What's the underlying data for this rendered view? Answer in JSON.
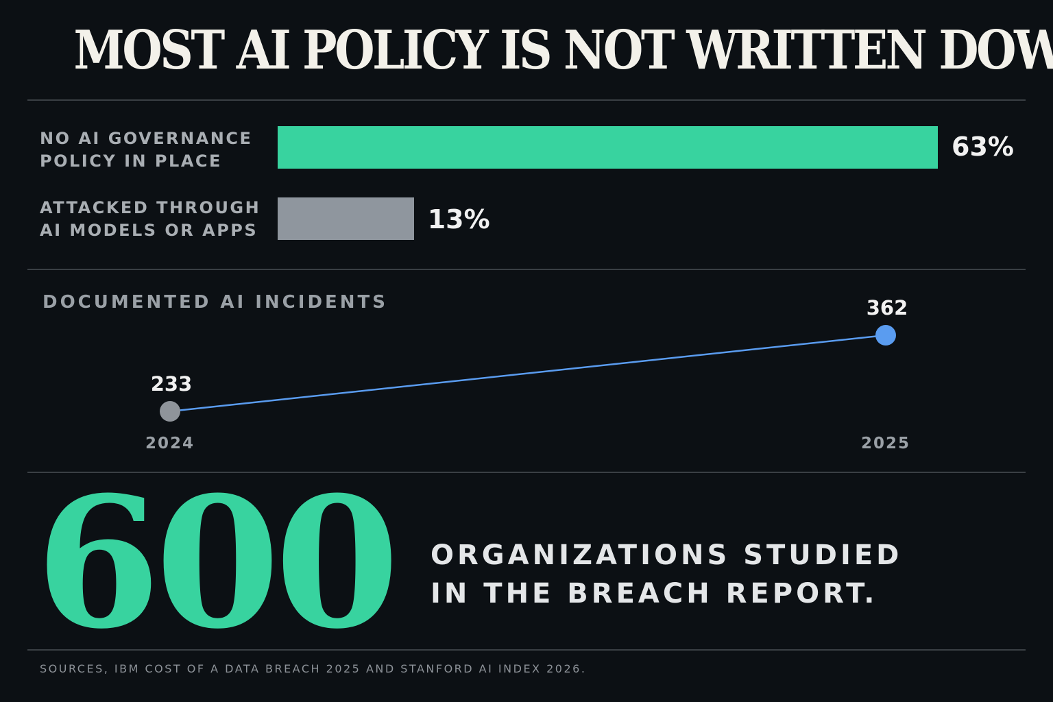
{
  "title": "MOST AI POLICY IS NOT WRITTEN DOWN",
  "colors": {
    "background": "#0c1014",
    "accent_green": "#38d39f",
    "bar_gray": "#8f969e",
    "line_blue": "#5a9cf0",
    "point_gray": "#8f949a"
  },
  "chart_data": [
    {
      "type": "bar",
      "orientation": "horizontal",
      "categories": [
        [
          "NO AI GOVERNANCE",
          "POLICY IN PLACE"
        ],
        [
          "ATTACKED THROUGH",
          "AI MODELS OR APPS"
        ]
      ],
      "values": [
        63,
        13
      ],
      "value_labels": [
        "63%",
        "13%"
      ],
      "unit": "%",
      "xlim": [
        0,
        63
      ]
    },
    {
      "type": "line",
      "title": "DOCUMENTED AI INCIDENTS",
      "x": [
        "2024",
        "2025"
      ],
      "values": [
        233,
        362
      ],
      "value_labels": [
        "233",
        "362"
      ]
    }
  ],
  "highlight": {
    "number": "600",
    "caption_lines": [
      "ORGANIZATIONS STUDIED",
      "IN THE BREACH REPORT."
    ]
  },
  "sources": "SOURCES, IBM COST OF A DATA BREACH 2025 AND STANFORD AI INDEX 2026."
}
